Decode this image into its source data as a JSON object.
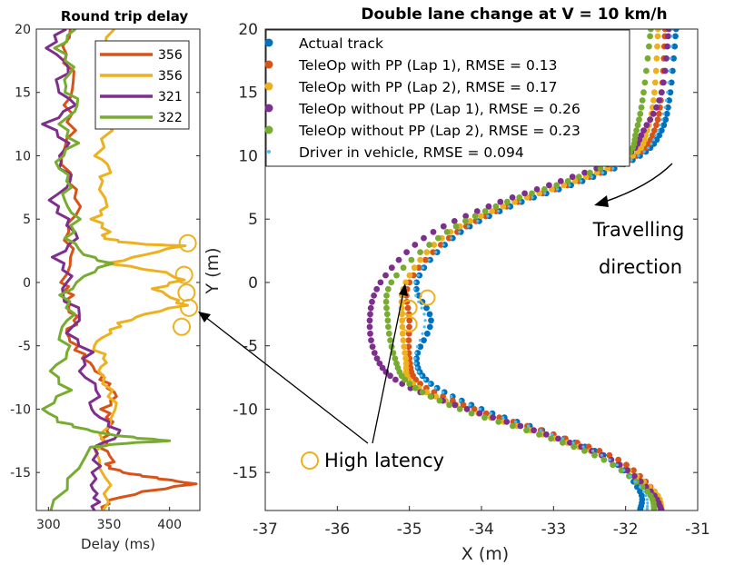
{
  "chart_data": [
    {
      "type": "line",
      "title": "Round trip delay",
      "xlabel": "Delay (ms)",
      "ylabel": "",
      "xlim": [
        290,
        425
      ],
      "ylim": [
        -18,
        20
      ],
      "xticks": [
        300,
        350,
        400
      ],
      "yticks": [
        -15,
        -10,
        -5,
        0,
        5,
        10,
        15,
        20
      ],
      "legend_position": "top-right",
      "series": [
        {
          "name": "356",
          "color": "#D95319",
          "x": [
            318,
            312,
            322,
            315,
            320,
            310,
            318,
            326,
            314,
            320,
            312,
            318,
            316,
            324,
            314,
            322,
            330,
            340,
            348,
            356,
            346,
            352,
            348,
            344,
            354,
            348,
            362,
            380,
            400,
            420,
            380,
            350,
            345
          ],
          "y": [
            20,
            18,
            16,
            14,
            12,
            10,
            8,
            6,
            4,
            2,
            0,
            -1,
            -2,
            -3,
            -4,
            -5,
            -6,
            -7,
            -8,
            -9,
            -10,
            -11,
            -12,
            -13,
            -14,
            -14.5,
            -15,
            -15.3,
            -15.6,
            -15.9,
            -16.5,
            -17.2,
            -18
          ]
        },
        {
          "name": "356",
          "color": "#EDB120",
          "x": [
            352,
            344,
            356,
            346,
            350,
            340,
            352,
            342,
            348,
            338,
            350,
            344,
            360,
            382,
            410,
            380,
            350,
            396,
            410,
            388,
            402,
            412,
            380,
            360,
            350,
            336,
            348,
            342,
            350,
            356,
            345,
            340,
            350,
            345
          ],
          "y": [
            20,
            18,
            16,
            14,
            12,
            10,
            9,
            8,
            6,
            5,
            4,
            3.6,
            3.2,
            3.0,
            2.9,
            2.2,
            1.5,
            0.8,
            0.2,
            -0.5,
            -1.2,
            -1.8,
            -2.5,
            -3.2,
            -4,
            -5,
            -6,
            -7,
            -8.5,
            -10,
            -12,
            -14,
            -16,
            -18
          ]
        },
        {
          "name": "321",
          "color": "#7E2F8E",
          "x": [
            312,
            300,
            318,
            305,
            322,
            298,
            316,
            308,
            320,
            302,
            314,
            324,
            306,
            318,
            310,
            328,
            316,
            334,
            326,
            342,
            334,
            348,
            360,
            338,
            340,
            336,
            340,
            338
          ],
          "y": [
            20,
            18.5,
            17,
            15.5,
            14,
            12.5,
            11,
            9.5,
            8,
            6.5,
            5,
            3.5,
            2,
            0.5,
            -1,
            -2.5,
            -4,
            -5.5,
            -7,
            -8.5,
            -10,
            -11,
            -12,
            -13,
            -14.5,
            -16,
            -17,
            -18
          ]
        },
        {
          "name": "322",
          "color": "#77AC30",
          "x": [
            322,
            308,
            320,
            312,
            326,
            310,
            322,
            306,
            318,
            312,
            324,
            316,
            330,
            350,
            330,
            312,
            320,
            308,
            318,
            302,
            316,
            296,
            310,
            330,
            350,
            376,
            400,
            362,
            336,
            318,
            302
          ],
          "y": [
            20,
            18.5,
            17,
            15.5,
            14,
            12.5,
            11,
            9.5,
            8,
            6.5,
            5,
            3.5,
            2.2,
            1.5,
            0.5,
            -1,
            -2.5,
            -4,
            -5.5,
            -7,
            -8.5,
            -10,
            -11,
            -11.6,
            -12,
            -12.3,
            -12.5,
            -12.7,
            -13,
            -15.5,
            -18
          ]
        }
      ],
      "annotations": [
        {
          "type": "circle-marker",
          "x": 415,
          "y": 3.1
        },
        {
          "type": "circle-marker",
          "x": 412,
          "y": 0.6
        },
        {
          "type": "circle-marker",
          "x": 414,
          "y": -0.8
        },
        {
          "type": "circle-marker",
          "x": 416,
          "y": -2.0
        },
        {
          "type": "circle-marker",
          "x": 410,
          "y": -3.5
        }
      ]
    },
    {
      "type": "scatter",
      "title": "Double lane change at V = 10 km/h",
      "xlabel": "X (m)",
      "ylabel": "Y (m)",
      "xlim": [
        -37,
        -31
      ],
      "ylim": [
        -18,
        20
      ],
      "xticks": [
        -37,
        -36,
        -35,
        -34,
        -33,
        -32,
        -31
      ],
      "yticks": [
        -15,
        -10,
        -5,
        0,
        5,
        10,
        15,
        20
      ],
      "legend_position": "top-right",
      "series": [
        {
          "name": "Actual track",
          "color": "#0072BD",
          "marker": "dot",
          "ctrl": [
            [
              -31.3,
              20
            ],
            [
              -31.38,
              15
            ],
            [
              -31.5,
              12
            ],
            [
              -31.8,
              10
            ],
            [
              -32.6,
              8
            ],
            [
              -33.6,
              6
            ],
            [
              -34.4,
              3.5
            ],
            [
              -34.9,
              0
            ],
            [
              -34.7,
              -3
            ],
            [
              -34.9,
              -6
            ],
            [
              -34.7,
              -8
            ],
            [
              -34.0,
              -10
            ],
            [
              -33.0,
              -12
            ],
            [
              -32.2,
              -14
            ],
            [
              -31.8,
              -16.5
            ],
            [
              -31.8,
              -18
            ]
          ]
        },
        {
          "name": "TeleOp with PP (Lap 1), RMSE = 0.13",
          "color": "#D95319",
          "marker": "dot",
          "ctrl": [
            [
              -31.45,
              20
            ],
            [
              -31.5,
              15
            ],
            [
              -31.6,
              12
            ],
            [
              -31.85,
              10
            ],
            [
              -32.65,
              8
            ],
            [
              -33.65,
              6
            ],
            [
              -34.45,
              3.5
            ],
            [
              -35.0,
              0
            ],
            [
              -35.0,
              -3
            ],
            [
              -35.0,
              -6
            ],
            [
              -34.85,
              -8
            ],
            [
              -34.1,
              -10
            ],
            [
              -33.0,
              -12
            ],
            [
              -32.1,
              -14
            ],
            [
              -31.6,
              -16.5
            ],
            [
              -31.5,
              -18
            ]
          ]
        },
        {
          "name": "TeleOp with PP (Lap 2), RMSE = 0.17",
          "color": "#EDB120",
          "marker": "dot",
          "ctrl": [
            [
              -31.55,
              20
            ],
            [
              -31.6,
              15
            ],
            [
              -31.7,
              12
            ],
            [
              -31.9,
              10
            ],
            [
              -32.7,
              8
            ],
            [
              -33.7,
              6
            ],
            [
              -34.55,
              3.5
            ],
            [
              -35.05,
              0
            ],
            [
              -35.1,
              -3
            ],
            [
              -35.05,
              -6
            ],
            [
              -34.95,
              -8
            ],
            [
              -34.2,
              -10
            ],
            [
              -33.15,
              -12
            ],
            [
              -32.2,
              -14
            ],
            [
              -31.6,
              -16.5
            ],
            [
              -31.5,
              -18
            ]
          ]
        },
        {
          "name": "TeleOp without PP (Lap 1), RMSE = 0.26",
          "color": "#7E2F8E",
          "marker": "dot",
          "ctrl": [
            [
              -31.4,
              20
            ],
            [
              -31.5,
              15
            ],
            [
              -31.75,
              12
            ],
            [
              -32.0,
              10
            ],
            [
              -32.9,
              8
            ],
            [
              -33.9,
              6
            ],
            [
              -34.8,
              3.5
            ],
            [
              -35.4,
              0
            ],
            [
              -35.55,
              -3
            ],
            [
              -35.45,
              -6
            ],
            [
              -35.1,
              -8
            ],
            [
              -34.2,
              -10
            ],
            [
              -33.1,
              -12
            ],
            [
              -32.2,
              -14
            ],
            [
              -31.65,
              -16.5
            ],
            [
              -31.5,
              -18
            ]
          ]
        },
        {
          "name": "TeleOp without PP (Lap 2), RMSE = 0.23",
          "color": "#77AC30",
          "marker": "dot",
          "ctrl": [
            [
              -31.65,
              20
            ],
            [
              -31.75,
              15
            ],
            [
              -31.85,
              12
            ],
            [
              -32.0,
              10
            ],
            [
              -32.8,
              8
            ],
            [
              -33.8,
              6
            ],
            [
              -34.6,
              3.5
            ],
            [
              -35.25,
              0
            ],
            [
              -35.3,
              -3
            ],
            [
              -35.2,
              -6
            ],
            [
              -35.0,
              -8
            ],
            [
              -34.3,
              -10
            ],
            [
              -33.2,
              -12
            ],
            [
              -32.3,
              -14
            ],
            [
              -31.7,
              -16.5
            ],
            [
              -31.6,
              -18
            ]
          ]
        },
        {
          "name": "Driver in vehicle, RMSE = 0.094",
          "color": "#4DBEEE",
          "marker": "small-dot",
          "ctrl": [
            [
              -31.35,
              20
            ],
            [
              -31.42,
              15
            ],
            [
              -31.55,
              12
            ],
            [
              -31.82,
              10
            ],
            [
              -32.62,
              8
            ],
            [
              -33.62,
              6
            ],
            [
              -34.42,
              3.5
            ],
            [
              -34.92,
              0
            ],
            [
              -34.78,
              -3
            ],
            [
              -34.92,
              -6
            ],
            [
              -34.72,
              -8
            ],
            [
              -34.02,
              -10
            ],
            [
              -33.02,
              -12
            ],
            [
              -32.22,
              -14
            ],
            [
              -31.75,
              -16.5
            ],
            [
              -31.7,
              -18
            ]
          ]
        }
      ],
      "annotations": [
        {
          "type": "circle-marker",
          "x": -35.0,
          "y": -2.0
        },
        {
          "type": "circle-marker",
          "x": -35.0,
          "y": -3.3
        },
        {
          "type": "circle-marker",
          "x": -34.75,
          "y": -1.2
        }
      ]
    }
  ],
  "annotations": {
    "travelling_direction_line1": "Travelling",
    "travelling_direction_line2": "direction",
    "high_latency_label": "High latency"
  },
  "colors": {
    "blue": "#0072BD",
    "orange": "#D95319",
    "yellow": "#EDB120",
    "purple": "#7E2F8E",
    "green": "#77AC30",
    "cyan": "#4DBEEE"
  }
}
